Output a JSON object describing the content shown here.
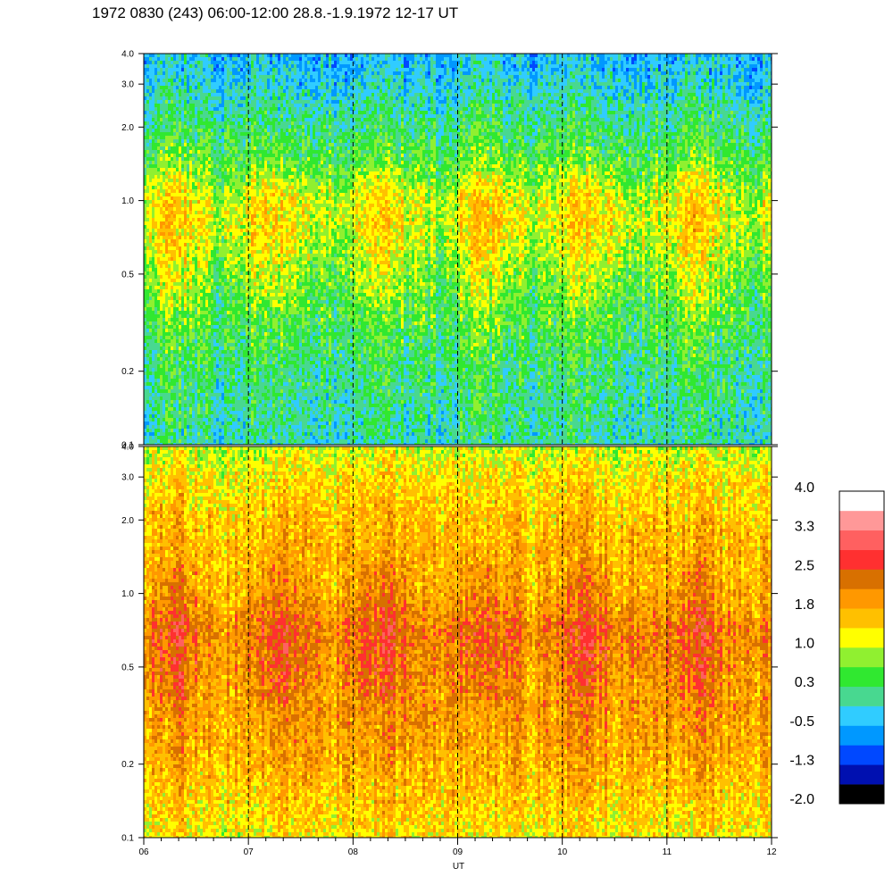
{
  "title": "1972 0830 (243) 06:00-12:00 28.8.-1.9.1972  12-17 UT",
  "chart_data": {
    "type": "heatmap",
    "xlabel": "UT",
    "x_range": [
      6,
      12
    ],
    "x_ticks": [
      {
        "value": 6,
        "label": "06"
      },
      {
        "value": 7,
        "label": "07"
      },
      {
        "value": 8,
        "label": "08"
      },
      {
        "value": 9,
        "label": "09"
      },
      {
        "value": 10,
        "label": "10"
      },
      {
        "value": 11,
        "label": "11"
      },
      {
        "value": 12,
        "label": "12"
      }
    ],
    "dashed_hour_lines": [
      7,
      8,
      9,
      10,
      11
    ],
    "y_scale": "log",
    "y_range": [
      0.1,
      4.0
    ],
    "panels": [
      {
        "name": "upper",
        "y_ticks": [
          {
            "value": 0.1,
            "label": "0.1"
          },
          {
            "value": 0.2,
            "label": "0.2"
          },
          {
            "value": 0.5,
            "label": "0.5"
          },
          {
            "value": 1.0,
            "label": "1.0"
          },
          {
            "value": 2.0,
            "label": "2.0"
          },
          {
            "value": 3.0,
            "label": "3.0"
          },
          {
            "value": 4.0,
            "label": "4.0"
          }
        ],
        "profile": [
          {
            "y": 0.1,
            "level": 0.0
          },
          {
            "y": 0.2,
            "level": 0.2
          },
          {
            "y": 0.35,
            "level": 0.55
          },
          {
            "y": 0.5,
            "level": 0.85
          },
          {
            "y": 0.8,
            "level": 1.25
          },
          {
            "y": 1.0,
            "level": 1.2
          },
          {
            "y": 1.5,
            "level": 0.5
          },
          {
            "y": 2.0,
            "level": 0.25
          },
          {
            "y": 3.0,
            "level": -0.2
          },
          {
            "y": 4.0,
            "level": -0.4
          }
        ]
      },
      {
        "name": "lower",
        "y_ticks": [
          {
            "value": 0.1,
            "label": "0.1"
          },
          {
            "value": 0.2,
            "label": "0.2"
          },
          {
            "value": 0.5,
            "label": "0.5"
          },
          {
            "value": 1.0,
            "label": "1.0"
          },
          {
            "value": 2.0,
            "label": "2.0"
          },
          {
            "value": 3.0,
            "label": "3.0"
          },
          {
            "value": 4.0,
            "label": "4.0"
          }
        ],
        "profile": [
          {
            "y": 0.1,
            "level": 1.3
          },
          {
            "y": 0.2,
            "level": 1.75
          },
          {
            "y": 0.4,
            "level": 2.05
          },
          {
            "y": 0.7,
            "level": 2.3
          },
          {
            "y": 1.0,
            "level": 1.9
          },
          {
            "y": 2.0,
            "level": 1.6
          },
          {
            "y": 3.0,
            "level": 1.35
          },
          {
            "y": 4.0,
            "level": 1.0
          }
        ]
      }
    ],
    "colorbar": {
      "labels": [
        "4.0",
        "3.3",
        "2.5",
        "1.8",
        "1.0",
        "0.3",
        "-0.5",
        "-1.3",
        "-2.0"
      ],
      "min": -2.0,
      "max": 4.0,
      "colors_bottom_to_top": [
        "#000000",
        "#0010b0",
        "#0048ff",
        "#0098ff",
        "#30ccff",
        "#48d890",
        "#30e830",
        "#90f030",
        "#ffff00",
        "#ffc000",
        "#ff9800",
        "#d87000",
        "#ff3030",
        "#ff6060",
        "#ff9898",
        "#ffffff"
      ]
    }
  }
}
